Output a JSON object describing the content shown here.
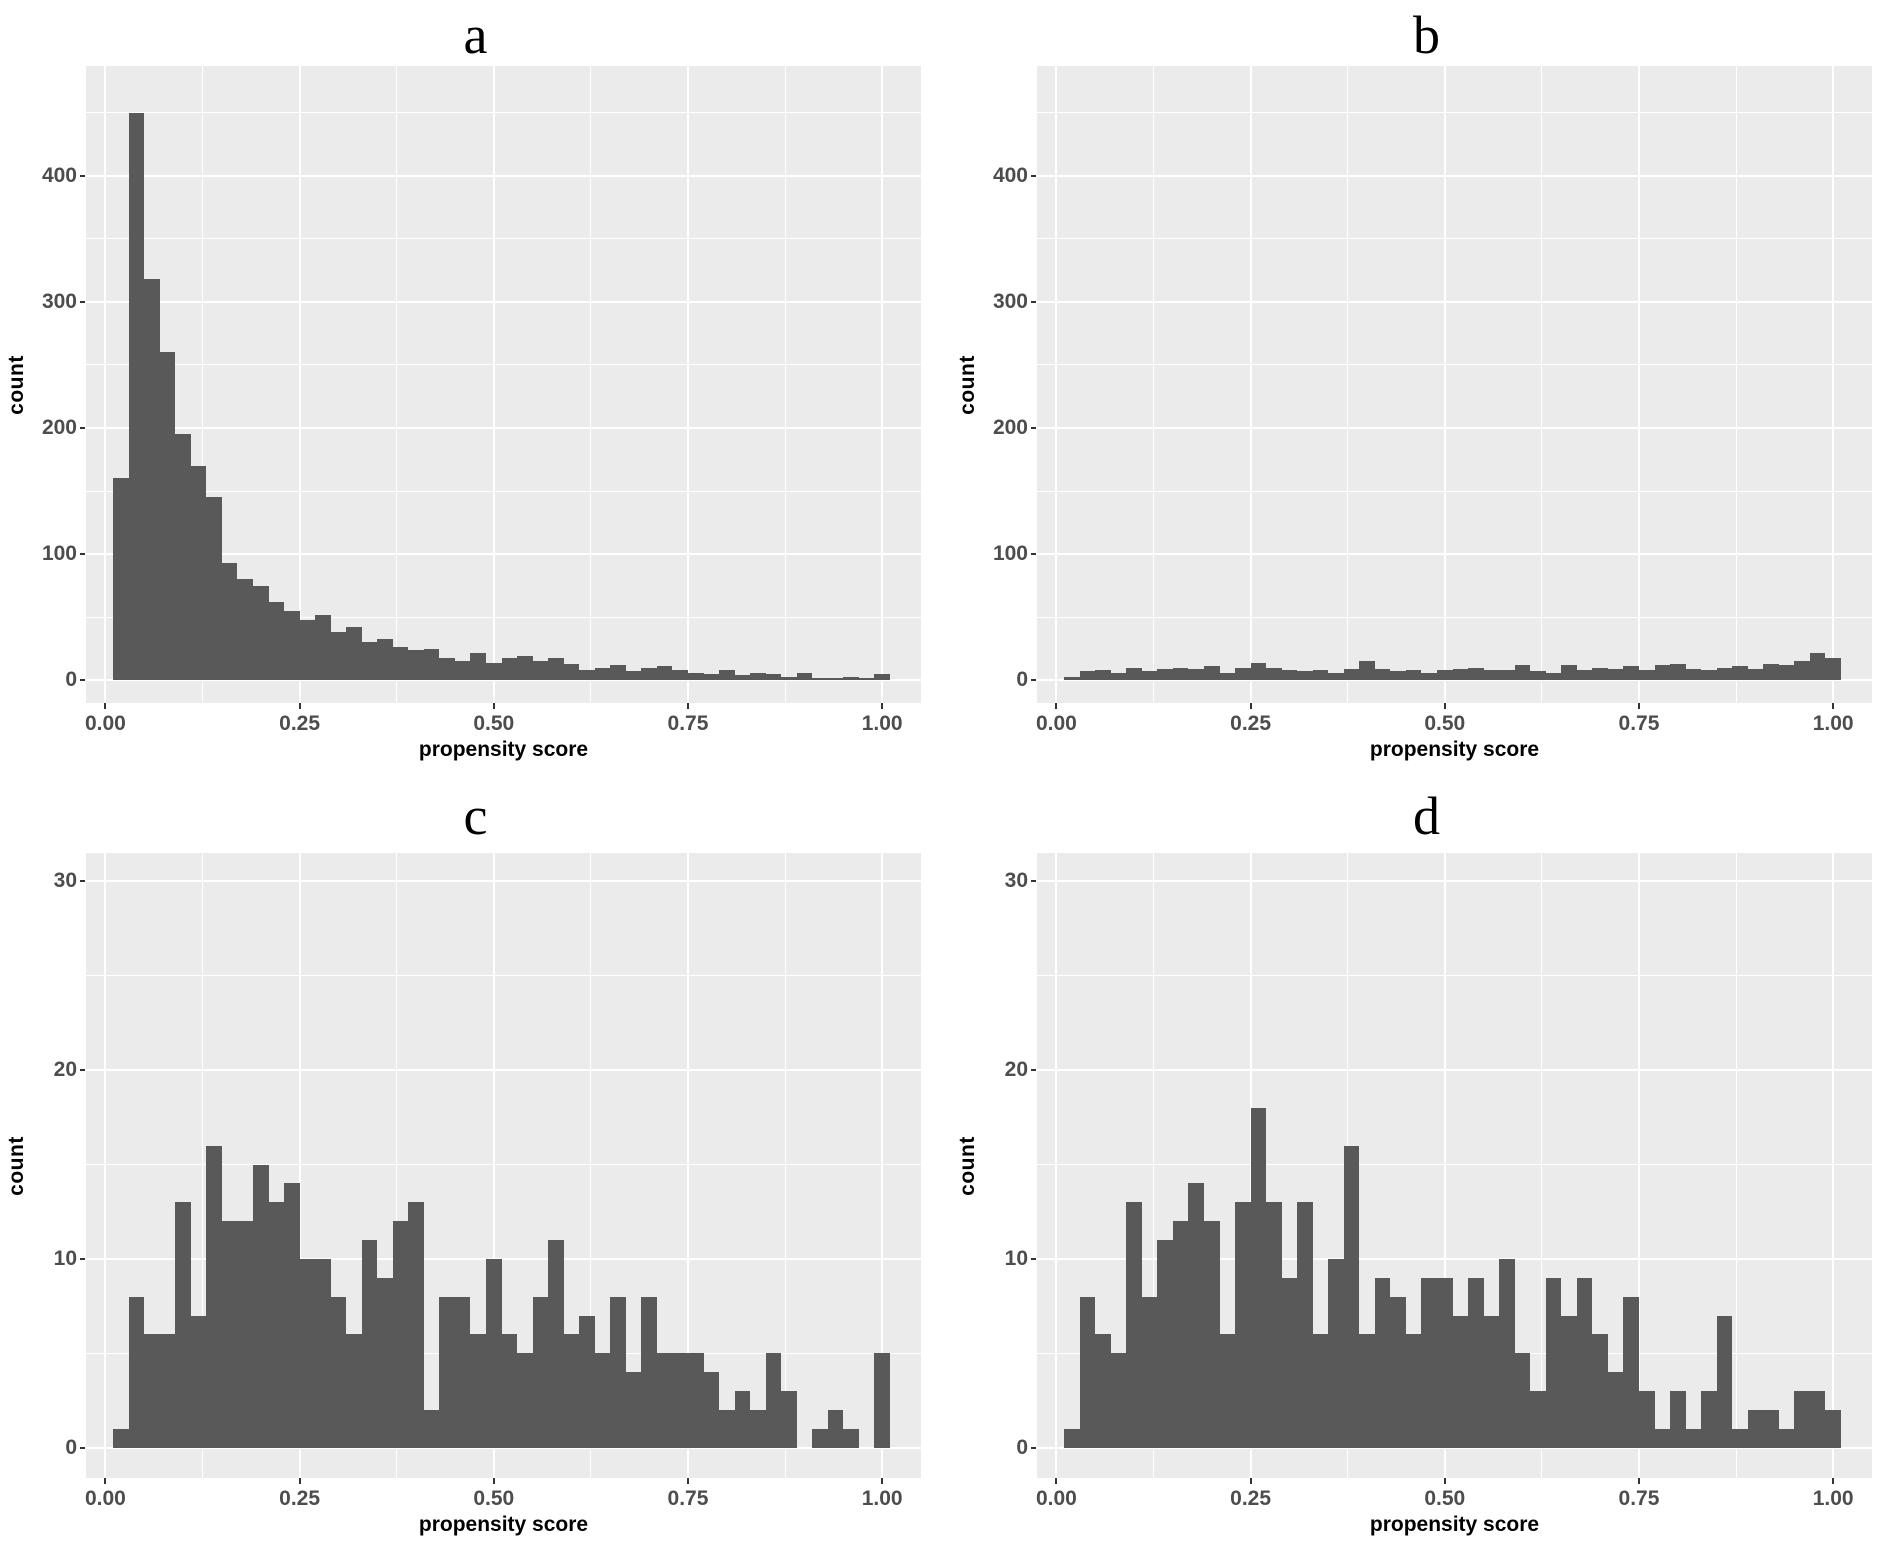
{
  "figure": {
    "background": "#ffffff"
  },
  "palette": {
    "bar": "#595959",
    "panel_bg": "#ebebeb",
    "grid": "#ffffff",
    "tick_text": "#4d4d4d",
    "axis_title_text": "#000000",
    "tick_mark": "#333333"
  },
  "axes": {
    "x_title": "propensity score",
    "y_title": "count",
    "x_tick_labels": [
      "0.00",
      "0.25",
      "0.50",
      "0.75",
      "1.00"
    ],
    "x_tick_values": [
      0,
      0.25,
      0.5,
      0.75,
      1.0
    ]
  },
  "chart_data": [
    {
      "id": "a",
      "label": "a",
      "type": "bar",
      "subtype": "histogram",
      "title": "a",
      "xlabel": "propensity score",
      "ylabel": "count",
      "bin_start": 0.01,
      "bin_width": 0.02,
      "counts": [
        160,
        450,
        318,
        260,
        195,
        170,
        145,
        93,
        80,
        75,
        62,
        55,
        48,
        52,
        38,
        42,
        30,
        33,
        26,
        24,
        25,
        18,
        15,
        22,
        14,
        18,
        19,
        15,
        18,
        13,
        8,
        10,
        12,
        7,
        10,
        11,
        8,
        6,
        5,
        8,
        4,
        6,
        5,
        3,
        6,
        2,
        2,
        3,
        2,
        5
      ],
      "xlim": [
        -0.025,
        1.05
      ],
      "ylim": [
        -18,
        487
      ],
      "y_tick_values": [
        0,
        100,
        200,
        300,
        400
      ],
      "y_tick_labels": [
        "0",
        "100",
        "200",
        "300",
        "400"
      ],
      "y_minor": [
        50,
        150,
        250,
        350,
        450
      ],
      "x_minor": [
        0.125,
        0.375,
        0.625,
        0.875
      ],
      "grid": true,
      "legend": "none"
    },
    {
      "id": "b",
      "label": "b",
      "type": "bar",
      "subtype": "histogram",
      "title": "b",
      "xlabel": "propensity score",
      "ylabel": "count",
      "bin_start": 0.01,
      "bin_width": 0.02,
      "counts": [
        3,
        7,
        8,
        6,
        10,
        7,
        9,
        10,
        9,
        11,
        6,
        10,
        14,
        10,
        8,
        7,
        8,
        6,
        9,
        15,
        9,
        7,
        8,
        6,
        8,
        9,
        10,
        8,
        8,
        12,
        7,
        6,
        12,
        8,
        10,
        9,
        11,
        8,
        12,
        13,
        9,
        8,
        10,
        11,
        9,
        13,
        12,
        15,
        22,
        18
      ],
      "xlim": [
        -0.025,
        1.05
      ],
      "ylim": [
        -18,
        487
      ],
      "y_tick_values": [
        0,
        100,
        200,
        300,
        400
      ],
      "y_tick_labels": [
        "0",
        "100",
        "200",
        "300",
        "400"
      ],
      "y_minor": [
        50,
        150,
        250,
        350,
        450
      ],
      "x_minor": [
        0.125,
        0.375,
        0.625,
        0.875
      ],
      "grid": true,
      "legend": "none"
    },
    {
      "id": "c",
      "label": "c",
      "type": "bar",
      "subtype": "histogram",
      "title": "c",
      "xlabel": "propensity score",
      "ylabel": "count",
      "bin_start": 0.01,
      "bin_width": 0.02,
      "counts": [
        1,
        8,
        6,
        6,
        13,
        7,
        16,
        12,
        12,
        15,
        13,
        14,
        10,
        10,
        8,
        6,
        11,
        9,
        12,
        13,
        2,
        8,
        8,
        6,
        10,
        6,
        5,
        8,
        11,
        6,
        7,
        5,
        8,
        4,
        8,
        5,
        5,
        5,
        4,
        2,
        3,
        2,
        5,
        3,
        0,
        1,
        2,
        1,
        0,
        5
      ],
      "xlim": [
        -0.025,
        1.05
      ],
      "ylim": [
        -1.6,
        31.5
      ],
      "y_tick_values": [
        0,
        10,
        20,
        30
      ],
      "y_tick_labels": [
        "0",
        "10",
        "20",
        "30"
      ],
      "y_minor": [
        5,
        15,
        25
      ],
      "x_minor": [
        0.125,
        0.375,
        0.625,
        0.875
      ],
      "grid": true,
      "legend": "none"
    },
    {
      "id": "d",
      "label": "d",
      "type": "bar",
      "subtype": "histogram",
      "title": "d",
      "xlabel": "propensity score",
      "ylabel": "count",
      "bin_start": 0.01,
      "bin_width": 0.02,
      "counts": [
        1,
        8,
        6,
        5,
        13,
        8,
        11,
        12,
        14,
        12,
        6,
        13,
        18,
        13,
        9,
        13,
        6,
        10,
        16,
        6,
        9,
        8,
        6,
        9,
        9,
        7,
        9,
        7,
        10,
        5,
        3,
        9,
        7,
        9,
        6,
        4,
        8,
        3,
        1,
        3,
        1,
        3,
        7,
        1,
        2,
        2,
        1,
        3,
        3,
        2
      ],
      "xlim": [
        -0.025,
        1.05
      ],
      "ylim": [
        -1.6,
        31.5
      ],
      "y_tick_values": [
        0,
        10,
        20,
        30
      ],
      "y_tick_labels": [
        "0",
        "10",
        "20",
        "30"
      ],
      "y_minor": [
        5,
        15,
        25
      ],
      "x_minor": [
        0.125,
        0.375,
        0.625,
        0.875
      ],
      "grid": true,
      "legend": "none"
    }
  ]
}
